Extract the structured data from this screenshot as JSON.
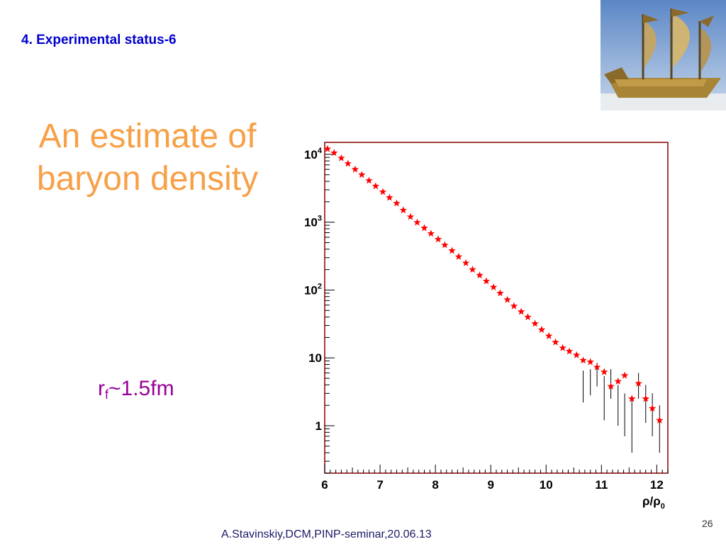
{
  "slide": {
    "section_title": "4. Experimental status-6",
    "main_title_line1": "An estimate of",
    "main_title_line2": "baryon density",
    "rf_base": "r",
    "rf_sub": "f",
    "rf_value": "~1.5fm",
    "page_number": "26",
    "footer": "A.Stavinskiy,DCM,PINP-seminar,20.06.13"
  },
  "colors": {
    "accent_title": "#f7a047",
    "section_title": "#0000cc",
    "rf_text": "#990099",
    "marker": "#ff0000",
    "frame": "#880000"
  },
  "chart_data": {
    "type": "scatter",
    "marker": "star",
    "xlim": [
      6,
      12.2
    ],
    "ylim": [
      0.2,
      15000
    ],
    "yscale": "log",
    "x_ticks": [
      6,
      7,
      8,
      9,
      10,
      11,
      12
    ],
    "x_tick_labels": [
      "6",
      "7",
      "8",
      "9",
      "10",
      "11",
      "12"
    ],
    "y_ticks": [
      {
        "value": 1,
        "base": "1",
        "exp": ""
      },
      {
        "value": 10,
        "base": "10",
        "exp": ""
      },
      {
        "value": 100,
        "base": "10",
        "exp": "2"
      },
      {
        "value": 1000,
        "base": "10",
        "exp": "3"
      },
      {
        "value": 10000,
        "base": "10",
        "exp": "4"
      }
    ],
    "xlabel_num": "ρ",
    "xlabel_den": "ρ",
    "xlabel_sub": "0",
    "series": [
      {
        "x": [
          6.05,
          6.17,
          6.3,
          6.42,
          6.55,
          6.67,
          6.8,
          6.92,
          7.05,
          7.17,
          7.3,
          7.42,
          7.55,
          7.67,
          7.8,
          7.92,
          8.05,
          8.17,
          8.3,
          8.42,
          8.55,
          8.67,
          8.8,
          8.92,
          9.05,
          9.17,
          9.3,
          9.42,
          9.55,
          9.67,
          9.8,
          9.92,
          10.05,
          10.17,
          10.3,
          10.42,
          10.55,
          10.67,
          10.8,
          10.92,
          11.05,
          11.17,
          11.3,
          11.42,
          11.55,
          11.67,
          11.8,
          11.92,
          12.05
        ],
        "y": [
          12000,
          10500,
          8800,
          7300,
          6000,
          5000,
          4100,
          3400,
          2800,
          2300,
          1900,
          1500,
          1200,
          990,
          820,
          680,
          560,
          460,
          380,
          310,
          250,
          200,
          165,
          135,
          110,
          90,
          72,
          58,
          48,
          40,
          32,
          26,
          21,
          17,
          14,
          12.5,
          11,
          9.2,
          8.7,
          7.3,
          6.2,
          3.8,
          4.5,
          5.5,
          2.5,
          4.2,
          2.5,
          1.8,
          1.2
        ]
      }
    ],
    "error_bars": {
      "x": [
        10.67,
        10.8,
        10.92,
        11.05,
        11.17,
        11.3,
        11.42,
        11.55,
        11.67,
        11.8,
        11.92,
        12.05
      ],
      "low": [
        2.2,
        2.8,
        3.8,
        1.2,
        2.5,
        1.0,
        0.7,
        0.4,
        2.5,
        1.1,
        0.7,
        0.4
      ],
      "high": [
        6.5,
        6.8,
        8.5,
        5.4,
        6.8,
        4.0,
        3.0,
        2.5,
        6.0,
        4.0,
        3.0,
        2.0
      ]
    }
  }
}
